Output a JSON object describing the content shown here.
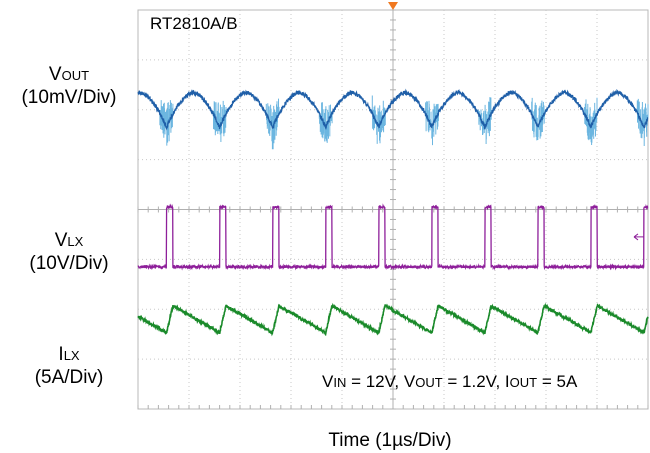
{
  "chart_data": {
    "type": "line",
    "title": "RT2810A/B",
    "xlabel": "Time (1µs/Div)",
    "x_divisions": 10,
    "y_divisions": 8,
    "grid": true,
    "channels": [
      {
        "name_main": "V",
        "name_sub": "OUT",
        "scale": "(10mV/Div)",
        "color": "#1f5fa8",
        "noise_color": "#6cb6e0"
      },
      {
        "name_main": "V",
        "name_sub": "LX",
        "scale": "(10V/Div)",
        "color": "#8e1f9a"
      },
      {
        "name_main": "I",
        "name_sub": "LX",
        "scale": "(5A/Div)",
        "color": "#1a8a2a"
      }
    ],
    "switching_period_us": 1.04,
    "annotation": {
      "vin": {
        "main": "V",
        "sub": "IN",
        "value": " = 12V,"
      },
      "vout": {
        "main": "V",
        "sub": "OUT",
        "value": " = 1.2V,"
      },
      "iout": {
        "main": "I",
        "sub": "OUT",
        "value": " = 5A"
      }
    },
    "trigger_marker_color": "#f07820"
  }
}
